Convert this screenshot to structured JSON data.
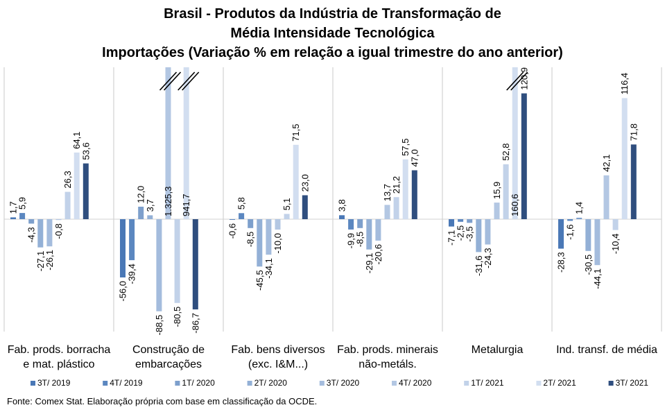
{
  "chart_data": {
    "type": "bar",
    "title_lines": [
      "Brasil - Produtos da Indústria de Transformação de",
      "Média Intensidade Tecnológica",
      "Importações (Variação % em relação a igual trimestre do ano anterior)"
    ],
    "categories": [
      [
        "Fab. prods. borracha",
        "e mat. plástico"
      ],
      [
        "Construção de",
        "embarcações"
      ],
      [
        "Fab. bens diversos",
        "(exc. I&M...)"
      ],
      [
        "Fab. prods. minerais",
        "não-metáls."
      ],
      [
        "Metalurgia"
      ],
      [
        "Ind. transf. de média"
      ]
    ],
    "series": [
      {
        "name": "3T/ 2019",
        "color": "#4a78b6",
        "values": [
          1.7,
          -56.0,
          -0.6,
          3.8,
          -7.1,
          -28.3
        ],
        "labels": [
          "1,7",
          "-56,0",
          "-0,6",
          "3,8",
          "-7,1",
          "-28,3"
        ]
      },
      {
        "name": "4T/ 2019",
        "color": "#5b87c0",
        "values": [
          5.9,
          -39.4,
          5.8,
          -9.9,
          -2.5,
          -1.6
        ],
        "labels": [
          "5,9",
          "-39,4",
          "5,8",
          "-9,9",
          "-2,5",
          "-1,6"
        ]
      },
      {
        "name": "1T/ 2020",
        "color": "#7d9fcc",
        "values": [
          -4.3,
          12.0,
          -8.5,
          -8.5,
          -3.5,
          1.4
        ],
        "labels": [
          "-4,3",
          "12,0",
          "-8,5",
          "-8,5",
          "-3,5",
          "1,4"
        ]
      },
      {
        "name": "2T/ 2020",
        "color": "#93b0d6",
        "values": [
          -27.1,
          3.7,
          -45.5,
          -29.1,
          -31.6,
          -30.5
        ],
        "labels": [
          "-27,1",
          "3,7",
          "-45,5",
          "-29,1",
          "-31,6",
          "-30,5"
        ]
      },
      {
        "name": "3T/ 2020",
        "color": "#a4bcdd",
        "values": [
          -26.1,
          -88.5,
          -34.1,
          -20.6,
          -24.3,
          -44.1
        ],
        "labels": [
          "-26,1",
          "-88,5",
          "-34,1",
          "-20,6",
          "-24,3",
          "-44,1"
        ]
      },
      {
        "name": "4T/ 2020",
        "color": "#b3c7e3",
        "values": [
          -0.8,
          1325.3,
          -10.0,
          13.7,
          15.9,
          42.1
        ],
        "labels": [
          "-0,8",
          "1.325,3",
          "-10,0",
          "13,7",
          "15,9",
          "42,1"
        ]
      },
      {
        "name": "1T/ 2021",
        "color": "#c2d2e9",
        "values": [
          26.3,
          -80.5,
          5.1,
          21.2,
          52.8,
          -10.4
        ],
        "labels": [
          "26,3",
          "-80,5",
          "5,1",
          "21,2",
          "52,8",
          "-10,4"
        ]
      },
      {
        "name": "2T/ 2021",
        "color": "#d2def0",
        "values": [
          64.1,
          941.7,
          71.5,
          57.5,
          160.6,
          116.4
        ],
        "labels": [
          "64,1",
          "941,7",
          "71,5",
          "57,5",
          "160,6",
          "116,4"
        ]
      },
      {
        "name": "3T/ 2021",
        "color": "#2f4e7e",
        "values": [
          53.6,
          -86.7,
          23.0,
          47.0,
          120.9,
          71.8
        ],
        "labels": [
          "53,6",
          "-86,7",
          "23,0",
          "47,0",
          "120,9",
          "71,8"
        ]
      }
    ],
    "legend_position": "bottom",
    "grid": false,
    "axis_break": true
  },
  "source_note": "Fonte: Comex Stat. Elaboração própria com base em classificação da OCDE."
}
